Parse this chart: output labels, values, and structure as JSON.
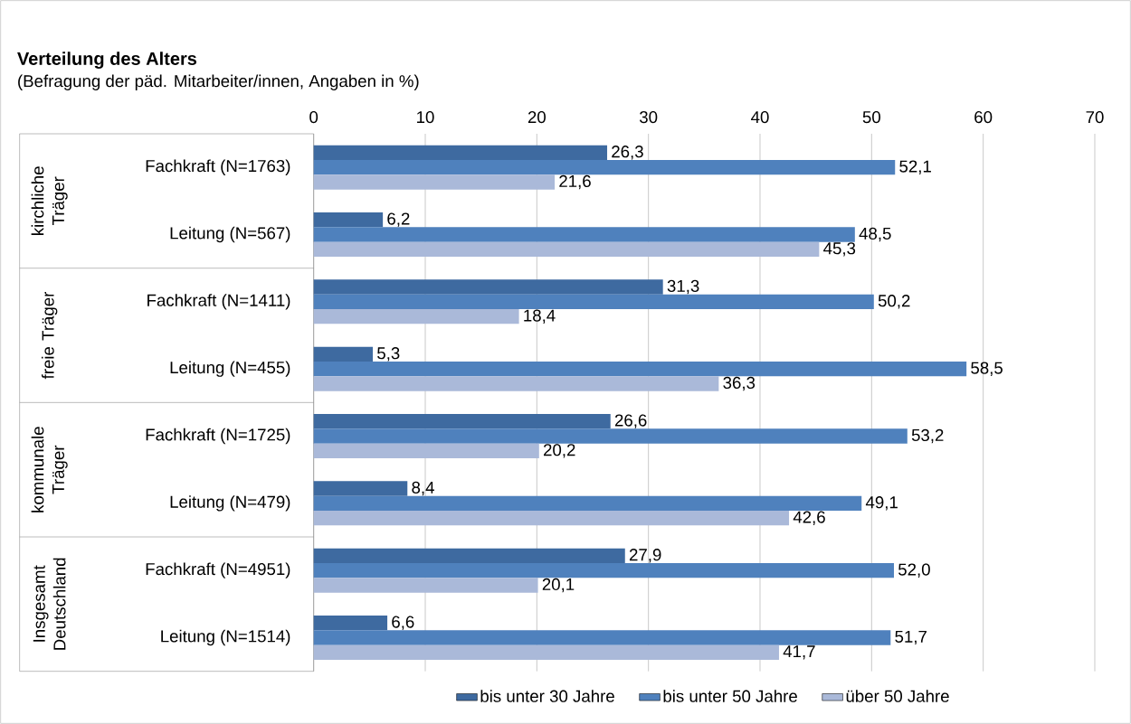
{
  "chart_data": {
    "type": "bar",
    "orientation": "horizontal",
    "title": "Verteilung des Alters",
    "subtitle": "(Befragung der päd. Mitarbeiter/innen, Angaben in %)",
    "categories": [
      "Fachkraft (N=1763)",
      "Leitung (N=567)",
      "Fachkraft (N=1411)",
      "Leitung (N=455)",
      "Fachkraft (N=1725)",
      "Leitung (N=479)",
      "Fachkraft (N=4951)",
      "Leitung (N=1514)"
    ],
    "annotations": [
      "kirchliche Träger",
      "freie Träger",
      "kommunale Träger",
      "Insgesamt Deutschland"
    ],
    "series": [
      {
        "name": "bis unter 30 Jahre",
        "color": "#3e6aa0",
        "values": [
          26.3,
          6.2,
          31.3,
          5.3,
          26.6,
          8.4,
          27.9,
          6.6
        ],
        "value_labels": [
          "26,3",
          "6,2",
          "31,3",
          "5,3",
          "26,6",
          "8,4",
          "27,9",
          "6,6"
        ]
      },
      {
        "name": "bis unter 50 Jahre",
        "color": "#4f81bd",
        "values": [
          52.1,
          48.5,
          50.2,
          58.5,
          53.2,
          49.1,
          52.0,
          51.7
        ],
        "value_labels": [
          "52,1",
          "48,5",
          "50,2",
          "58,5",
          "53,2",
          "49,1",
          "52,0",
          "51,7"
        ]
      },
      {
        "name": "über 50 Jahre",
        "color": "#aab9d9",
        "values": [
          21.6,
          45.3,
          18.4,
          36.3,
          20.2,
          42.6,
          20.1,
          41.7
        ],
        "value_labels": [
          "21,6",
          "45,3",
          "18,4",
          "36,3",
          "20,2",
          "42,6",
          "20,1",
          "41,7"
        ]
      }
    ],
    "xlim": [
      0,
      70
    ],
    "xticks": [
      0,
      10,
      20,
      30,
      40,
      50,
      60,
      70
    ],
    "grid": "x",
    "legend": "bottom"
  }
}
